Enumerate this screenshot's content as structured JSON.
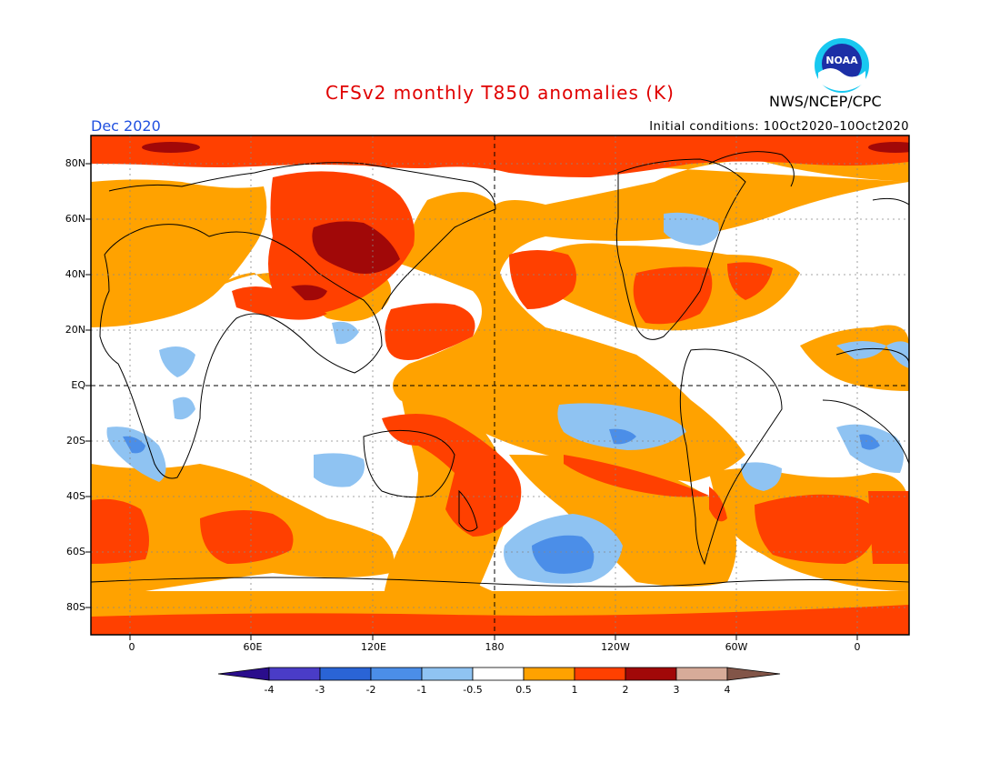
{
  "header": {
    "title": "CFSv2 monthly T850 anomalies (K)",
    "agency": "NWS/NCEP/CPC",
    "logo_text": "NOAA",
    "month": "Dec 2020",
    "initial_conditions": "Initial conditions: 10Oct2020–10Oct2020"
  },
  "map": {
    "projection": "cylindrical equidistant",
    "lat_labels": [
      "80N",
      "60N",
      "40N",
      "20N",
      "EQ",
      "20S",
      "40S",
      "60S",
      "80S"
    ],
    "lon_labels": [
      "0",
      "60E",
      "120E",
      "180",
      "120W",
      "60W",
      "0"
    ],
    "grid": "dotted",
    "equator_and_dateline": "dashed"
  },
  "colorbar": {
    "labels": [
      "-4",
      "-3",
      "-2",
      "-1",
      "-0.5",
      "0.5",
      "1",
      "2",
      "3",
      "4"
    ],
    "colors": [
      "#2a0d8c",
      "#4a3cc7",
      "#2a64d6",
      "#4b8ee8",
      "#8fc3f2",
      "#ffffff",
      "#ffa200",
      "#ff4000",
      "#a10808",
      "#d7ab99",
      "#825548"
    ]
  },
  "palette": {
    "orange": "#ffa200",
    "red": "#ff4000",
    "darkred": "#a10808",
    "lightblue": "#8fc3f2",
    "blue": "#4b8ee8",
    "title": "#e00000",
    "month": "#2050e0"
  }
}
